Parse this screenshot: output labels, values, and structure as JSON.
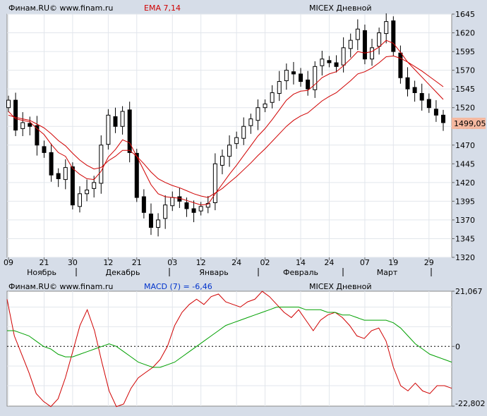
{
  "colors": {
    "background": "#d6dde8",
    "plot_bg": "#ffffff",
    "grid": "#e2e6ec",
    "candle": "#000000",
    "ema": "#d00000",
    "macd": "#d00000",
    "signal": "#00a000",
    "price_tag": "#f4b8a0",
    "ema_label": "#d00000",
    "macd_label": "#0033cc"
  },
  "chart_data": [
    {
      "type": "candlestick",
      "header_source": "Финам.RU© www.finam.ru",
      "indicator_label": "EMA 7,14",
      "instrument": "MICEX Дневной",
      "ylim": [
        1320,
        1645
      ],
      "ytick_labels": [
        "1645",
        "1620",
        "1595",
        "1570",
        "1545",
        "1520",
        "1495",
        "1470",
        "1445",
        "1420",
        "1395",
        "1370",
        "1345",
        "1320"
      ],
      "last_price": "1499,05",
      "xtick_labels": [
        "09",
        "21",
        "30",
        "12",
        "21",
        "03",
        "12",
        "24",
        "02",
        "14",
        "24",
        "07",
        "19",
        "29"
      ],
      "month_labels": [
        "Ноябрь",
        "Декабрь",
        "Январь",
        "Февраль",
        "Март"
      ],
      "close_series": [
        1530,
        1490,
        1500,
        1495,
        1470,
        1460,
        1430,
        1425,
        1440,
        1390,
        1405,
        1410,
        1420,
        1470,
        1510,
        1495,
        1515,
        1460,
        1400,
        1380,
        1360,
        1370,
        1390,
        1400,
        1395,
        1385,
        1380,
        1388,
        1392,
        1445,
        1455,
        1470,
        1480,
        1495,
        1505,
        1520,
        1525,
        1540,
        1555,
        1570,
        1565,
        1555,
        1545,
        1575,
        1585,
        1580,
        1575,
        1600,
        1610,
        1625,
        1585,
        1600,
        1620,
        1635,
        1595,
        1560,
        1545,
        1540,
        1530,
        1520,
        1510,
        1500
      ],
      "ema_fast": [
        1515,
        1505,
        1503,
        1501,
        1492,
        1484,
        1471,
        1460,
        1455,
        1439,
        1431,
        1425,
        1424,
        1435,
        1454,
        1464,
        1477,
        1473,
        1455,
        1436,
        1417,
        1405,
        1401,
        1400,
        1399,
        1396,
        1393,
        1390,
        1391,
        1405,
        1418,
        1431,
        1443,
        1456,
        1469,
        1482,
        1492,
        1504,
        1517,
        1530,
        1538,
        1542,
        1543,
        1551,
        1560,
        1565,
        1568,
        1576,
        1585,
        1595,
        1593,
        1595,
        1601,
        1610,
        1606,
        1594,
        1581,
        1571,
        1561,
        1551,
        1541,
        1531
      ],
      "ema_slow": [
        1510,
        1507,
        1505,
        1503,
        1498,
        1493,
        1485,
        1476,
        1469,
        1459,
        1450,
        1443,
        1438,
        1440,
        1449,
        1455,
        1463,
        1463,
        1455,
        1445,
        1434,
        1425,
        1420,
        1416,
        1413,
        1409,
        1405,
        1402,
        1400,
        1406,
        1412,
        1420,
        1428,
        1437,
        1446,
        1456,
        1465,
        1475,
        1485,
        1495,
        1503,
        1509,
        1513,
        1521,
        1529,
        1535,
        1540,
        1548,
        1556,
        1565,
        1568,
        1573,
        1580,
        1588,
        1589,
        1586,
        1581,
        1575,
        1569,
        1562,
        1555,
        1548
      ]
    },
    {
      "type": "line",
      "header_source": "Финам.RU© www.finam.ru",
      "indicator_label": "MACD (7) = -6,46",
      "instrument": "MICEX Дневной",
      "ylim": [
        -22.802,
        21.067
      ],
      "ytick_labels": [
        "21,067",
        "0",
        "-22,802"
      ],
      "series": [
        {
          "color": "#d00000",
          "values": [
            18,
            4,
            -3,
            -10,
            -18,
            -21,
            -23,
            -20,
            -12,
            -2,
            8,
            14,
            6,
            -6,
            -17,
            -23,
            -22,
            -16,
            -12,
            -10,
            -8,
            -5,
            0,
            8,
            13,
            16,
            18,
            16,
            19,
            20,
            17,
            16,
            15,
            17,
            18,
            21,
            19,
            16,
            13,
            11,
            14,
            10,
            6,
            10,
            12,
            13,
            11,
            8,
            4,
            3,
            6,
            7,
            2,
            -8,
            -15,
            -17,
            -14,
            -17,
            -18,
            -15,
            -15,
            -16
          ]
        },
        {
          "color": "#00a000",
          "values": [
            6,
            6,
            5,
            4,
            2,
            0,
            -1,
            -3,
            -4,
            -4,
            -3,
            -2,
            -1,
            0,
            1,
            0,
            -2,
            -4,
            -6,
            -7,
            -8,
            -8,
            -7,
            -6,
            -4,
            -2,
            0,
            2,
            4,
            6,
            8,
            9,
            10,
            11,
            12,
            13,
            14,
            15,
            15,
            15,
            15,
            14,
            14,
            14,
            13,
            13,
            12,
            12,
            11,
            10,
            10,
            10,
            10,
            9,
            7,
            4,
            1,
            -1,
            -3,
            -4,
            -5,
            -6
          ]
        }
      ]
    }
  ]
}
